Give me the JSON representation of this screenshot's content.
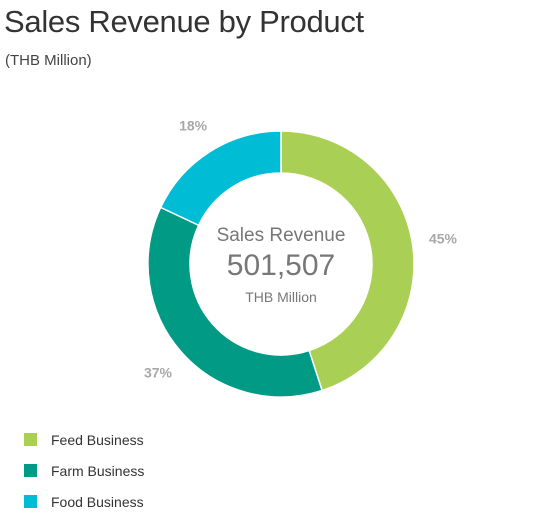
{
  "chart_data": {
    "type": "pie",
    "title": "Sales Revenue by Product",
    "subtitle": "(THB Million)",
    "center": {
      "label": "Sales Revenue",
      "value": "501,507",
      "unit": "THB Million"
    },
    "slices": [
      {
        "name": "Feed Business",
        "value": 45,
        "label": "45%",
        "color": "#a9cf54"
      },
      {
        "name": "Farm Business",
        "value": 37,
        "label": "37%",
        "color": "#009a85"
      },
      {
        "name": "Food Business",
        "value": 18,
        "label": "18%",
        "color": "#00bcd4"
      }
    ],
    "legend_position": "bottom-left"
  }
}
